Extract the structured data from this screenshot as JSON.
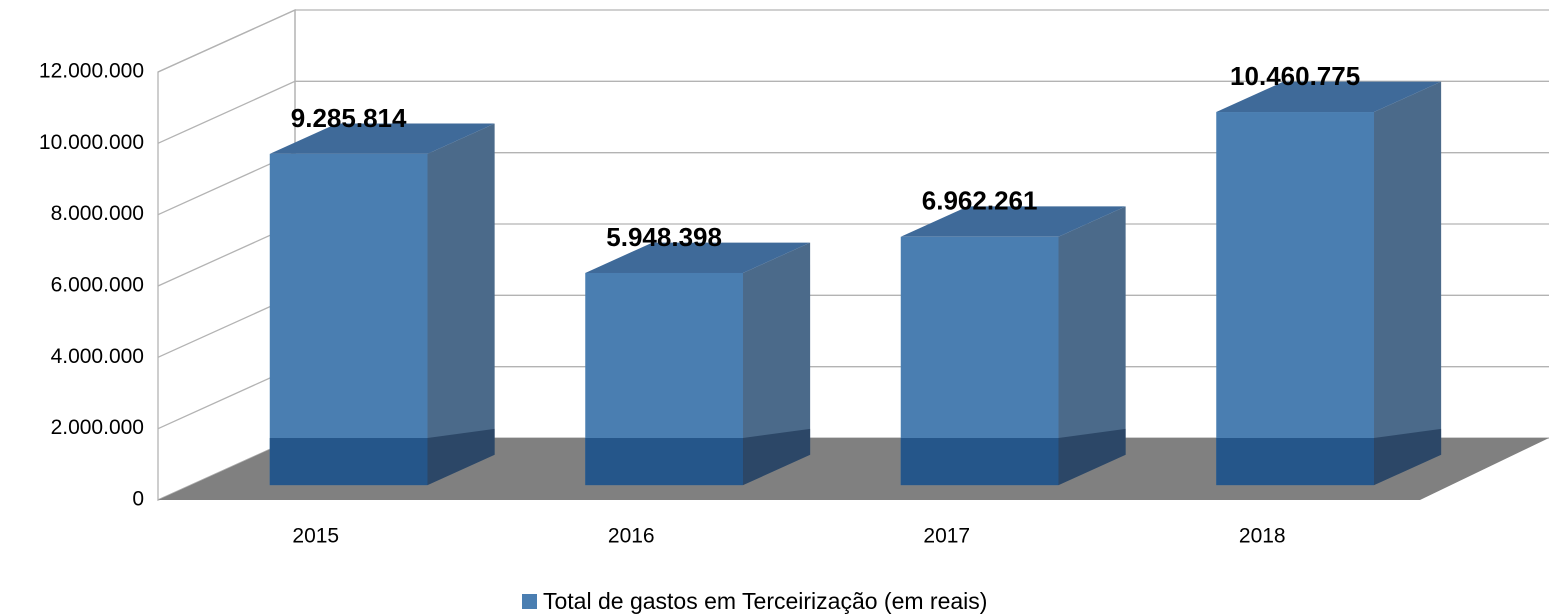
{
  "chart_data": {
    "type": "bar",
    "categories": [
      "2015",
      "2016",
      "2017",
      "2018"
    ],
    "series": [
      {
        "name": "Total de gastos em Terceirização (em reais)",
        "color": "#4a7eb1",
        "values": [
          9285814,
          5948398,
          6962261,
          10460775
        ],
        "value_labels": [
          "9.285.814",
          "5.948.398",
          "6.962.261",
          "10.460.775"
        ]
      }
    ],
    "ylim": [
      0,
      12000000
    ],
    "yticks": [
      0,
      {
        "value": 2000000,
        "label": "2.000.000"
      },
      {
        "value": 4000000,
        "label": "4.000.000"
      },
      {
        "value": 6000000,
        "label": "6.000.000"
      },
      {
        "value": 8000000,
        "label": "8.000.000"
      },
      {
        "value": 10000000,
        "label": "10.000.000"
      },
      {
        "value": 12000000,
        "label": "12.000.000"
      }
    ],
    "grid": true
  }
}
